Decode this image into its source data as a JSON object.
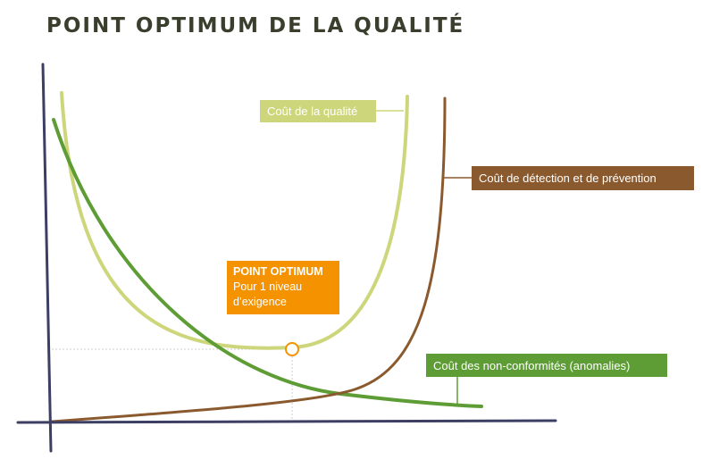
{
  "title": "POINT OPTIMUM DE LA QUALITÉ",
  "labels": {
    "quality_cost": "Coût de la qualité",
    "detection_cost": "Coût de détection et de prévention",
    "nonconformity_cost": "Coût des non-conformités (anomalies)"
  },
  "optimum": {
    "title": "POINT OPTIMUM",
    "description": "Pour 1 niveau\nd’exigence"
  },
  "colors": {
    "title": "#3a3e2c",
    "axis": "#3c3f63",
    "quality_curve": "#cdd67a",
    "detection_curve": "#8a5a2e",
    "nonconformity_curve": "#5e9d35",
    "optimum": "#f59200",
    "guide": "#cfcfcf"
  }
}
